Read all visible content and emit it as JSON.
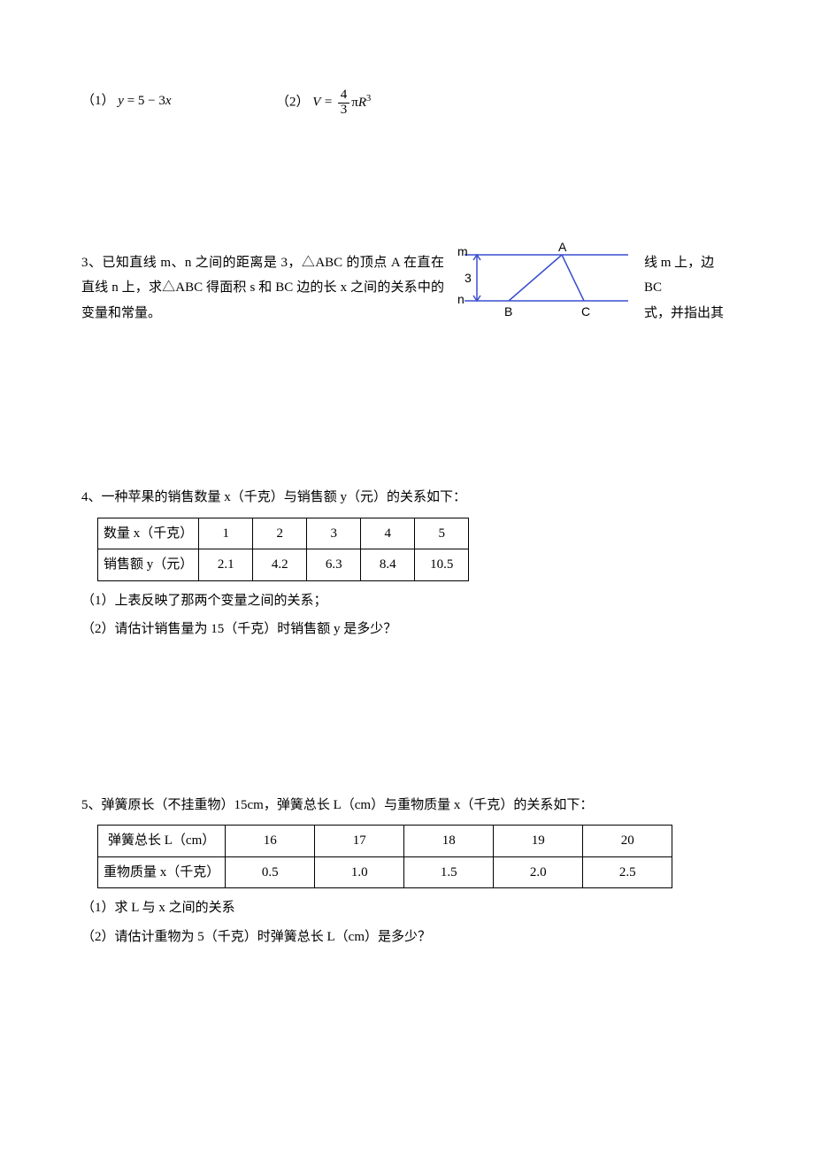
{
  "q2": {
    "item1_label": "（1）",
    "item1_formula_html": "<span class='eq'>y</span> = 5 − 3<span class='eq'>x</span>",
    "item2_label": "（2）",
    "item2_formula_prefix": "V =",
    "item2_frac_num": "4",
    "item2_frac_den": "3",
    "item2_formula_suffix_html": "π<span class='eq'>R</span><sup class='exp'>3</sup>"
  },
  "q3": {
    "left_text": "3、已知直线 m、n 之间的距离是 3，△ABC 的顶点 A 在直在直线 n 上，求△ABC 得面积 s 和 BC 边的长 x 之间的关系中的变量和常量。",
    "right_line1": "线 m 上，边 BC",
    "right_line2": "式，并指出其",
    "diagram": {
      "line_color": "#3a4fd0",
      "text_color": "#000000",
      "background": "#ffffff",
      "label_m": "m",
      "label_n": "n",
      "label_A": "A",
      "label_B": "B",
      "label_C": "C",
      "label_3": "3"
    }
  },
  "q4": {
    "intro": "4、一种苹果的销售数量 x（千克）与销售额 y（元）的关系如下：",
    "table": {
      "row1_label": "数量 x（千克）",
      "row1_vals": [
        "1",
        "2",
        "3",
        "4",
        "5"
      ],
      "row2_label": "销售额 y（元）",
      "row2_vals": [
        "2.1",
        "4.2",
        "6.3",
        "8.4",
        "10.5"
      ]
    },
    "sub1": "（1）上表反映了那两个变量之间的关系；",
    "sub2": "（2）请估计销售量为 15（千克）时销售额 y 是多少？"
  },
  "q5": {
    "intro": "5、弹簧原长（不挂重物）15cm，弹簧总长 L（cm）与重物质量 x（千克）的关系如下：",
    "table": {
      "row1_label": "弹簧总长 L（cm）",
      "row1_vals": [
        "16",
        "17",
        "18",
        "19",
        "20"
      ],
      "row2_label": "重物质量 x（千克）",
      "row2_vals": [
        "0.5",
        "1.0",
        "1.5",
        "2.0",
        "2.5"
      ]
    },
    "sub1": "（1）求 L 与 x 之间的关系",
    "sub2": "（2）请估计重物为 5（千克）时弹簧总长 L（cm）是多少？"
  }
}
